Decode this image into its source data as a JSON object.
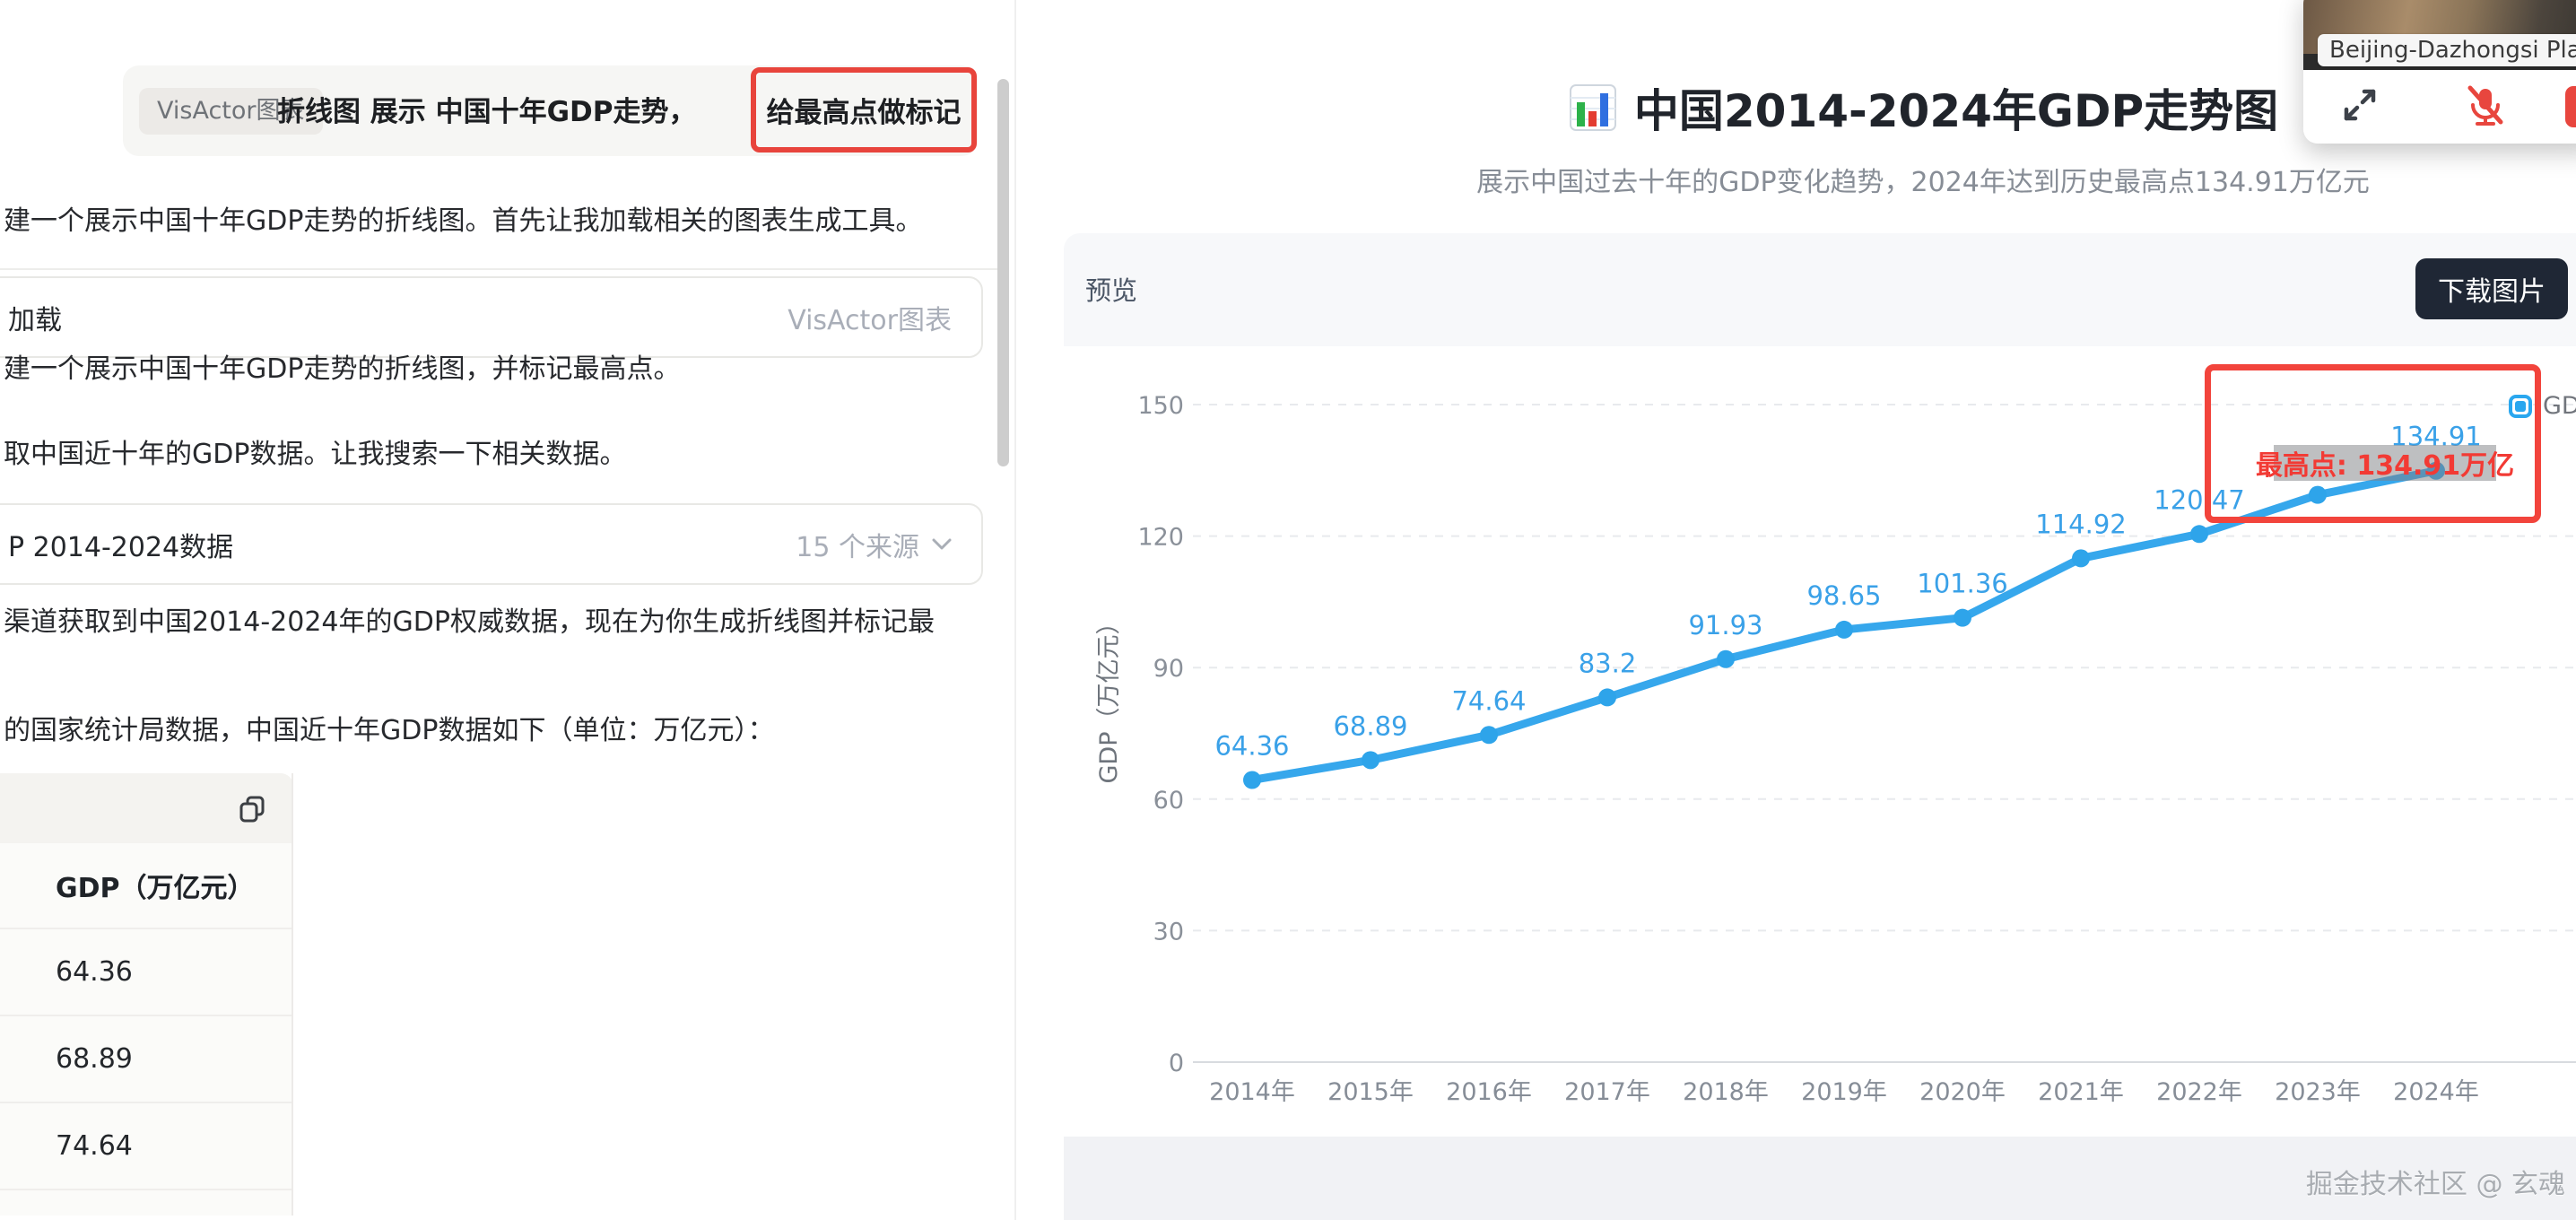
{
  "chat": {
    "prompt": {
      "tool_tag": "VisActor图表",
      "text": "折线图 展示 中国十年GDP走势，",
      "highlighted": "给最高点做标记"
    },
    "messages": [
      "建一个展示中国十年GDP走势的折线图。首先让我加载相关的图表生成工具。",
      "建一个展示中国十年GDP走势的折线图，并标记最高点。",
      "取中国近十年的GDP数据。让我搜索一下相关数据。",
      "渠道获取到中国2014-2024年的GDP权威数据，现在为你生成折线图并标记最",
      "的国家统计局数据，中国近十年GDP数据如下（单位：万亿元）："
    ],
    "tool_calls": [
      {
        "left": "加载",
        "right": "VisActor图表"
      },
      {
        "left": "P 2014-2024数据",
        "right": "15 个来源"
      }
    ],
    "table": {
      "header": "GDP（万亿元）",
      "rows": [
        "64.36",
        "68.89",
        "74.64"
      ]
    }
  },
  "main": {
    "title": "中国2014-2024年GDP走势图",
    "subtitle": "展示中国过去十年的GDP变化趋势，2024年达到历史最高点134.91万亿元",
    "preview_label": "预览",
    "download_button": "下载图片",
    "legend_label": "GDP",
    "annotation_label": "最高点: 134.91万亿",
    "watermark": "掘金技术社区 @ 玄魂"
  },
  "video_widget": {
    "location_label": "Beijing-Dazhongsi Plaza N"
  },
  "colors": {
    "accent_red": "#e8443c",
    "annotation_red": "#f2443c",
    "line_blue": "#36a7ec",
    "button_dark": "#1f2735",
    "card_bg": "#f7f8fa"
  },
  "chart_data": {
    "type": "line",
    "title": "中国2014-2024年GDP走势图",
    "categories": [
      "2014年",
      "2015年",
      "2016年",
      "2017年",
      "2018年",
      "2019年",
      "2020年",
      "2021年",
      "2022年",
      "2023年",
      "2024年"
    ],
    "values": [
      64.36,
      68.89,
      74.64,
      83.2,
      91.93,
      98.65,
      101.36,
      114.92,
      120.47,
      129.4,
      134.91
    ],
    "data_labels": [
      "64.36",
      "68.89",
      "74.64",
      "83.2",
      "91.93",
      "98.65",
      "101.36",
      "114.92",
      "120.47",
      "",
      "134.91"
    ],
    "series_name": "GDP",
    "xlabel": "",
    "ylabel": "GDP（万亿元）",
    "yticks": [
      0,
      30,
      60,
      90,
      120,
      150
    ],
    "ylim": [
      0,
      150
    ],
    "grid": "dashed-horizontal",
    "legend_position": "top-right",
    "annotation": "最高点: 134.91万亿"
  }
}
